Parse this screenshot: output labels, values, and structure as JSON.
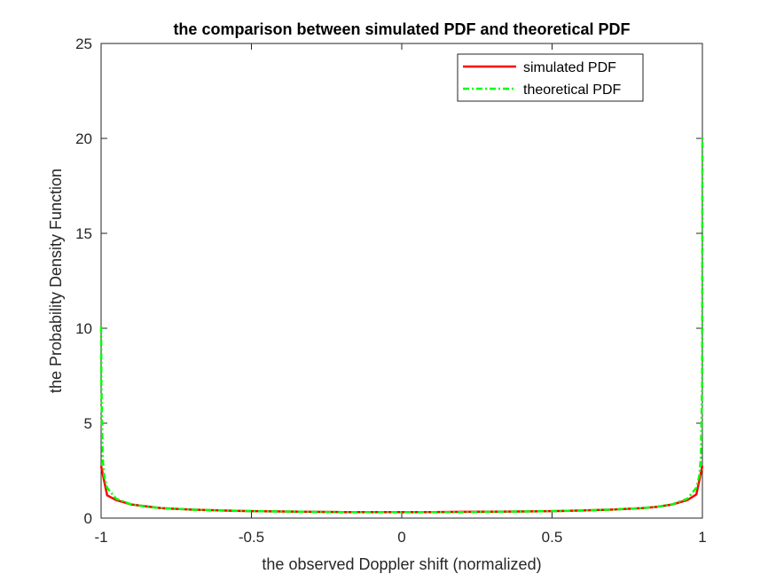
{
  "chart_data": {
    "type": "line",
    "title": "the comparison between simulated PDF and theoretical PDF",
    "xlabel": "the observed Doppler shift (normalized)",
    "ylabel": "the Probability Density Function",
    "xlim": [
      -1,
      1
    ],
    "ylim": [
      0,
      25
    ],
    "xticks": [
      -1,
      -0.5,
      0,
      0.5,
      1
    ],
    "xtick_labels": [
      "-1",
      "-0.5",
      "0",
      "0.5",
      "1"
    ],
    "yticks": [
      0,
      5,
      10,
      15,
      20,
      25
    ],
    "ytick_labels": [
      "0",
      "5",
      "10",
      "15",
      "20",
      "25"
    ],
    "grid": false,
    "legend_position": "top-right",
    "series": [
      {
        "name": "simulated PDF",
        "color": "#ff0000",
        "style": "solid",
        "x": [
          -1,
          -0.98,
          -0.95,
          -0.9,
          -0.85,
          -0.8,
          -0.7,
          -0.6,
          -0.5,
          -0.4,
          -0.3,
          -0.2,
          -0.1,
          0,
          0.1,
          0.2,
          0.3,
          0.4,
          0.5,
          0.6,
          0.7,
          0.8,
          0.85,
          0.9,
          0.95,
          0.98,
          1
        ],
        "y": [
          2.75,
          1.2,
          0.95,
          0.72,
          0.62,
          0.53,
          0.45,
          0.4,
          0.37,
          0.35,
          0.33,
          0.32,
          0.32,
          0.32,
          0.32,
          0.33,
          0.34,
          0.35,
          0.37,
          0.4,
          0.45,
          0.53,
          0.6,
          0.72,
          0.95,
          1.25,
          2.75
        ]
      },
      {
        "name": "theoretical PDF",
        "color": "#00ff00",
        "style": "dash-dot",
        "x": [
          -1,
          -0.999,
          -0.995,
          -0.99,
          -0.98,
          -0.95,
          -0.9,
          -0.85,
          -0.8,
          -0.7,
          -0.6,
          -0.5,
          -0.4,
          -0.3,
          -0.2,
          -0.1,
          0,
          0.1,
          0.2,
          0.3,
          0.4,
          0.5,
          0.6,
          0.7,
          0.8,
          0.85,
          0.9,
          0.95,
          0.98,
          0.99,
          0.995,
          0.999,
          1
        ],
        "y": [
          10.1,
          7.1,
          3.2,
          2.25,
          1.6,
          1.02,
          0.73,
          0.6,
          0.53,
          0.45,
          0.4,
          0.37,
          0.35,
          0.33,
          0.32,
          0.32,
          0.32,
          0.32,
          0.32,
          0.33,
          0.35,
          0.37,
          0.4,
          0.45,
          0.53,
          0.6,
          0.73,
          1.02,
          1.6,
          2.25,
          3.2,
          7.1,
          20.1
        ]
      }
    ]
  }
}
